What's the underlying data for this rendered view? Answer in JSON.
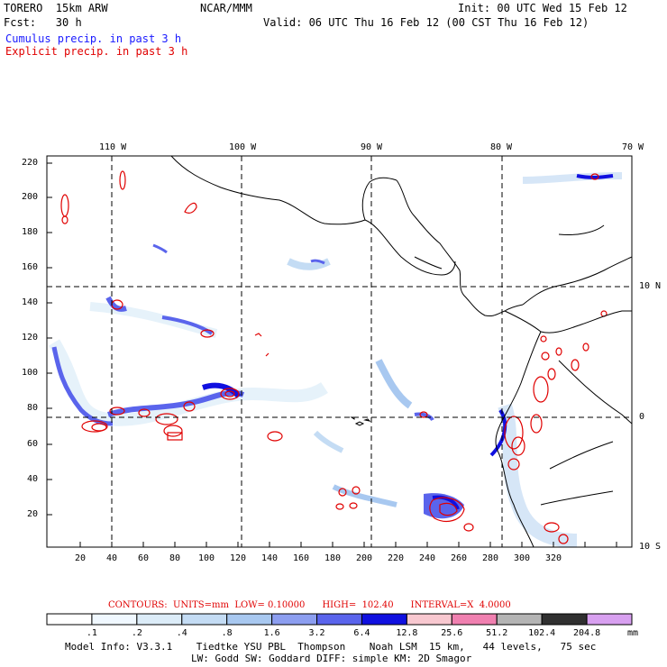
{
  "header": {
    "model": "TORERO  15km ARW",
    "center": "NCAR/MMM",
    "init": "Init: 00 UTC Wed 15 Feb 12",
    "fcst": "Fcst:   30 h",
    "valid": "Valid: 06 UTC Thu 16 Feb 12 (00 CST Thu 16 Feb 12)",
    "cumulus": "Cumulus precip. in past 3 h",
    "explicit": "Explicit precip. in past 3 h",
    "colors": {
      "cumulus": "#1a1aff",
      "explicit": "#e00000"
    }
  },
  "map": {
    "lon_labels": [
      "110 W",
      "100 W",
      "90 W",
      "80 W",
      "70 W"
    ],
    "lat_labels": [
      "10 N",
      "0",
      "10 S"
    ],
    "y_ticks": [
      "220",
      "200",
      "180",
      "160",
      "140",
      "120",
      "100",
      "80",
      "60",
      "40",
      "20"
    ],
    "x_ticks": [
      "20",
      "40",
      "60",
      "80",
      "100",
      "120",
      "140",
      "160",
      "180",
      "200",
      "220",
      "240",
      "260",
      "280",
      "300",
      "320"
    ]
  },
  "contours": {
    "text": "CONTOURS:  UNITS=mm  LOW= 0.10000      HIGH=  102.40      INTERVAL=X  4.0000"
  },
  "colorbar": {
    "labels": [
      ".1",
      ".2",
      ".4",
      ".8",
      "1.6",
      "3.2",
      "6.4",
      "12.8",
      "25.6",
      "51.2",
      "102.4",
      "204.8"
    ],
    "units": "mm",
    "colors": [
      "#ffffff",
      "#f0f8ff",
      "#dcecf8",
      "#c4dcf4",
      "#a8c8f0",
      "#8c9ef0",
      "#5a64ec",
      "#1010e0",
      "#f8c8d0",
      "#f080b0",
      "#b4b4b4",
      "#303030",
      "#d8a0f0"
    ]
  },
  "footer": {
    "line1": "Model Info: V3.3.1    Tiedtke YSU PBL  Thompson    Noah LSM  15 km,   44 levels,   75 sec",
    "line2": "LW: Godd SW: Goddard DIFF: simple KM: 2D Smagor"
  }
}
